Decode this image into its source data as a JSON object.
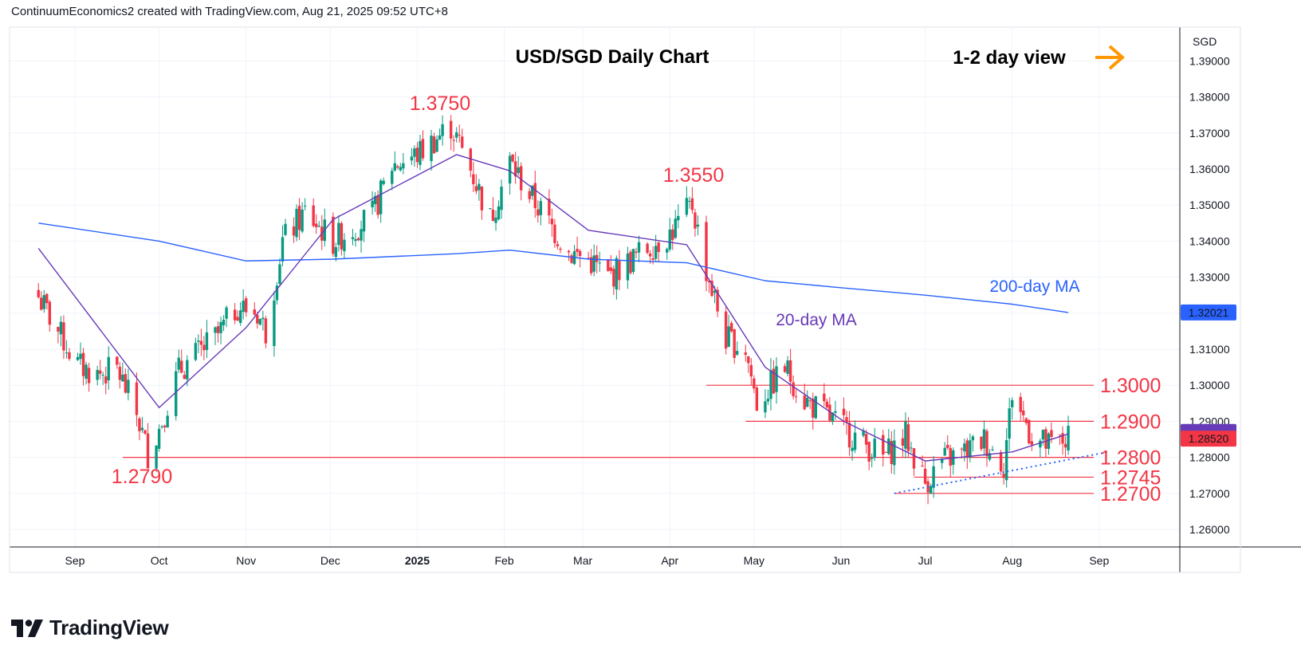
{
  "header": {
    "text": "ContinuumEconomics2 created with TradingView.com, Aug 21, 2025 09:52 UTC+8"
  },
  "footer": {
    "brand_label": "TradingView"
  },
  "colors": {
    "up": "#089981",
    "down": "#f23645",
    "ma20": "#673ab7",
    "ma200": "#2962ff",
    "arrow": "#ff9800",
    "level": "#f23645",
    "trend": "#2962ff"
  },
  "chart_data": {
    "type": "candlestick",
    "title": "USD/SGD Daily Chart",
    "view_label": "1-2 day view",
    "currency": "SGD",
    "ylim": [
      1.252,
      1.402
    ],
    "y_ticks": [
      "1.39000",
      "1.38000",
      "1.37000",
      "1.36000",
      "1.35000",
      "1.34000",
      "1.33000",
      "1.32000",
      "1.31000",
      "1.30000",
      "1.29000",
      "1.28000",
      "1.27000",
      "1.26000"
    ],
    "x_ticks": [
      "Sep",
      "Oct",
      "Nov",
      "Dec",
      "2025",
      "Feb",
      "Mar",
      "Apr",
      "May",
      "Jun",
      "Jul",
      "Aug",
      "Sep"
    ],
    "last_price": "1.28520",
    "ma200_price": "1.32021",
    "levels": [
      {
        "label": "1.3000",
        "value": 1.3
      },
      {
        "label": "1.2900",
        "value": 1.29
      },
      {
        "label": "1.2800",
        "value": 1.28
      },
      {
        "label": "1.2745",
        "value": 1.2745
      },
      {
        "label": "1.2700",
        "value": 1.27
      }
    ],
    "annotations": [
      {
        "label": "1.3750",
        "value": 1.375,
        "date": "2025-01-13"
      },
      {
        "label": "1.3550",
        "value": 1.355,
        "date": "2025-04-09"
      },
      {
        "label": "1.2790",
        "value": 1.279,
        "date": "2024-09-27"
      }
    ],
    "indicators": [
      {
        "name": "200-day MA",
        "values": [
          1.345,
          1.34,
          1.3345,
          1.335,
          1.3365,
          1.3375,
          1.335,
          1.334,
          1.329,
          1.327,
          1.325,
          1.3225,
          1.3202
        ]
      },
      {
        "name": "20-day MA",
        "values": [
          1.338,
          1.2938,
          1.316,
          1.346,
          1.364,
          1.3595,
          1.343,
          1.339,
          1.305,
          1.29,
          1.279,
          1.2815,
          1.2865
        ]
      }
    ],
    "indicator_dates": [
      "2024-08-19",
      "2024-10-01",
      "2024-11-01",
      "2024-12-02",
      "2025-01-15",
      "2025-02-03",
      "2025-03-03",
      "2025-04-07",
      "2025-05-05",
      "2025-06-02",
      "2025-07-01",
      "2025-08-01",
      "2025-08-21"
    ],
    "ohlc_anchors": [
      {
        "date": "2024-08-19",
        "close": 1.3245
      },
      {
        "date": "2024-08-26",
        "close": 1.315
      },
      {
        "date": "2024-09-02",
        "close": 1.3055
      },
      {
        "date": "2024-09-09",
        "close": 1.303
      },
      {
        "date": "2024-09-16",
        "close": 1.3045
      },
      {
        "date": "2024-09-23",
        "close": 1.292
      },
      {
        "date": "2024-09-27",
        "close": 1.281
      },
      {
        "date": "2024-10-01",
        "close": 1.288
      },
      {
        "date": "2024-10-08",
        "close": 1.304
      },
      {
        "date": "2024-10-22",
        "close": 1.314
      },
      {
        "date": "2024-10-29",
        "close": 1.322
      },
      {
        "date": "2024-11-05",
        "close": 1.32
      },
      {
        "date": "2024-11-08",
        "close": 1.315
      },
      {
        "date": "2024-11-14",
        "close": 1.34
      },
      {
        "date": "2024-11-22",
        "close": 1.348
      },
      {
        "date": "2024-12-02",
        "close": 1.34
      },
      {
        "date": "2024-12-16",
        "close": 1.347
      },
      {
        "date": "2024-12-23",
        "close": 1.361
      },
      {
        "date": "2025-01-01",
        "close": 1.364
      },
      {
        "date": "2025-01-13",
        "close": 1.372
      },
      {
        "date": "2025-01-20",
        "close": 1.36
      },
      {
        "date": "2025-01-27",
        "close": 1.346
      },
      {
        "date": "2025-02-03",
        "close": 1.362
      },
      {
        "date": "2025-02-10",
        "close": 1.353
      },
      {
        "date": "2025-02-24",
        "close": 1.337
      },
      {
        "date": "2025-03-03",
        "close": 1.335
      },
      {
        "date": "2025-03-10",
        "close": 1.33
      },
      {
        "date": "2025-03-24",
        "close": 1.338
      },
      {
        "date": "2025-04-01",
        "close": 1.342
      },
      {
        "date": "2025-04-09",
        "close": 1.35
      },
      {
        "date": "2025-04-14",
        "close": 1.332
      },
      {
        "date": "2025-04-21",
        "close": 1.313
      },
      {
        "date": "2025-04-28",
        "close": 1.31
      },
      {
        "date": "2025-05-02",
        "close": 1.295
      },
      {
        "date": "2025-05-12",
        "close": 1.305
      },
      {
        "date": "2025-05-19",
        "close": 1.296
      },
      {
        "date": "2025-06-02",
        "close": 1.288
      },
      {
        "date": "2025-06-16",
        "close": 1.28
      },
      {
        "date": "2025-06-24",
        "close": 1.286
      },
      {
        "date": "2025-07-01",
        "close": 1.273
      },
      {
        "date": "2025-07-07",
        "close": 1.279
      },
      {
        "date": "2025-07-14",
        "close": 1.281
      },
      {
        "date": "2025-07-22",
        "close": 1.285
      },
      {
        "date": "2025-07-29",
        "close": 1.278
      },
      {
        "date": "2025-08-01",
        "close": 1.298
      },
      {
        "date": "2025-08-08",
        "close": 1.286
      },
      {
        "date": "2025-08-14",
        "close": 1.283
      },
      {
        "date": "2025-08-21",
        "close": 1.2852
      }
    ]
  }
}
